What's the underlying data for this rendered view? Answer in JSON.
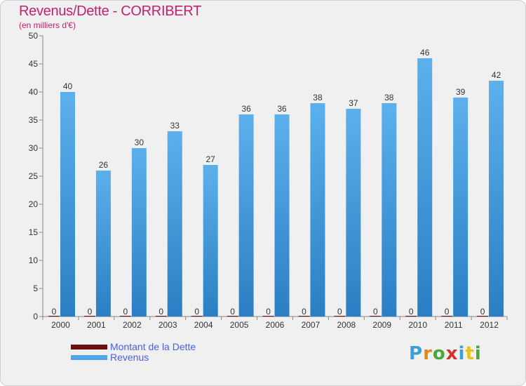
{
  "chart_data": {
    "type": "bar",
    "title": "Revenus/Dette - CORRIBERT",
    "subtitle": "(en milliers d'€)",
    "categories": [
      "2000",
      "2001",
      "2002",
      "2003",
      "2004",
      "2005",
      "2006",
      "2007",
      "2008",
      "2009",
      "2010",
      "2011",
      "2012"
    ],
    "series": [
      {
        "name": "Montant de la Dette",
        "color": "#6b0e0e",
        "values": [
          0,
          0,
          0,
          0,
          0,
          0,
          0,
          0,
          0,
          0,
          0,
          0,
          0
        ]
      },
      {
        "name": "Revenus",
        "color": "#4fa7e8",
        "values": [
          40,
          26,
          30,
          33,
          27,
          36,
          36,
          38,
          37,
          38,
          46,
          39,
          42
        ]
      }
    ],
    "ylim": [
      0,
      50
    ],
    "yticks": [
      0,
      5,
      10,
      15,
      20,
      25,
      30,
      35,
      40,
      45,
      50
    ],
    "grid": false,
    "legend": "bottom-left"
  },
  "logo": {
    "letters": [
      "P",
      "r",
      "o",
      "x",
      "i",
      "t",
      "i"
    ]
  }
}
